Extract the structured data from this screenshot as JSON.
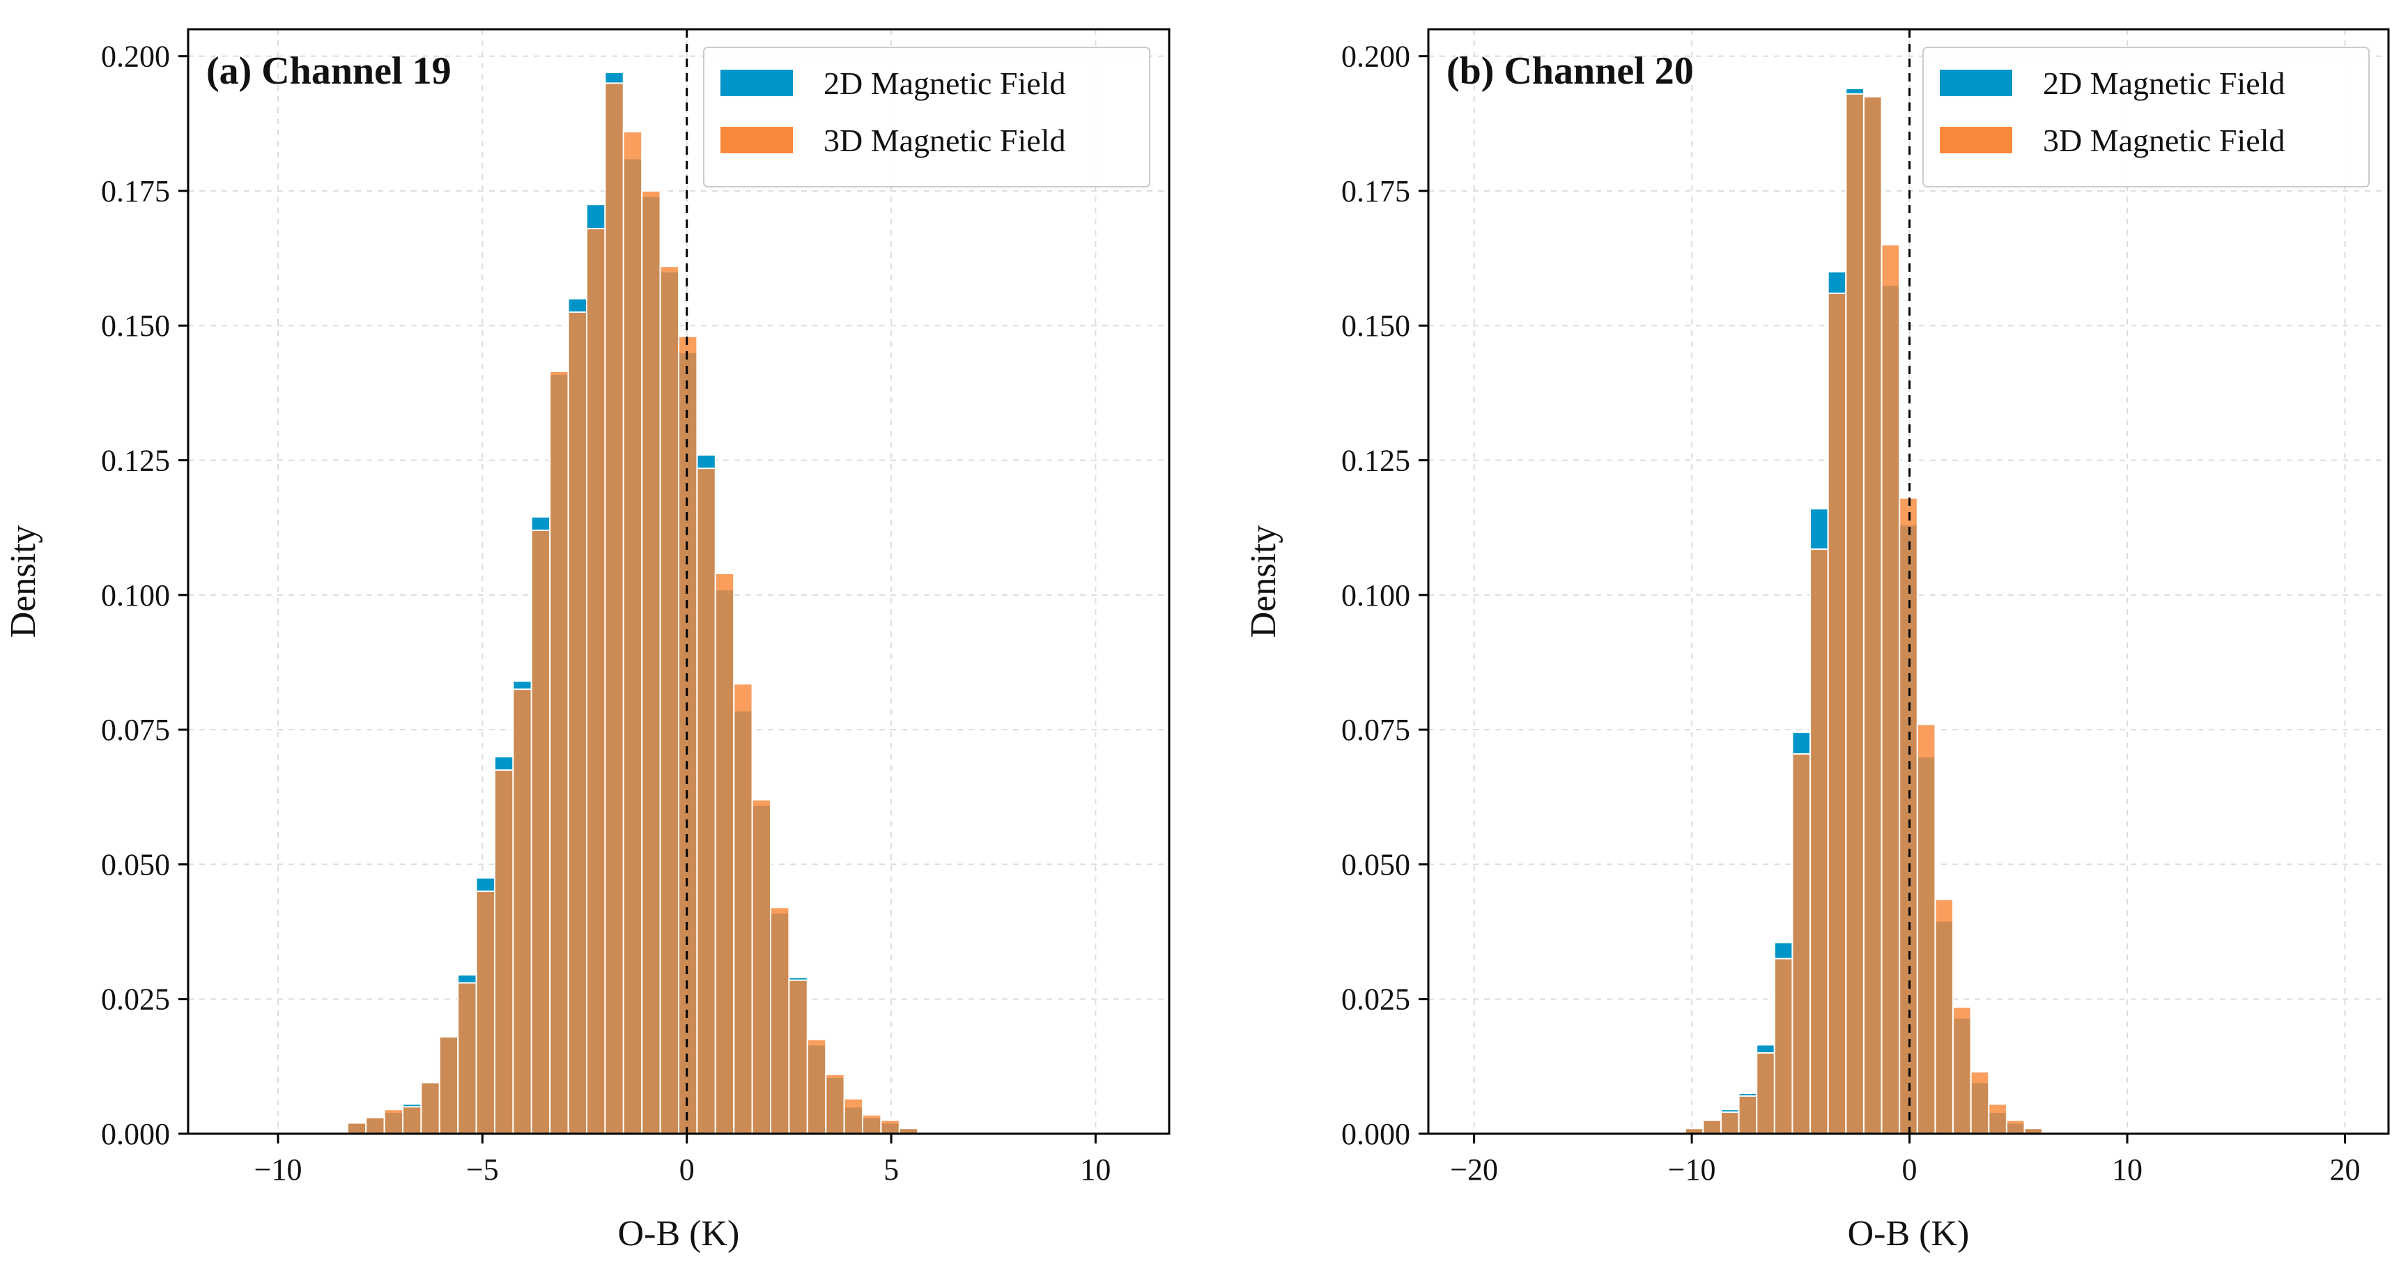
{
  "chart_data": [
    {
      "type": "bar",
      "title": "(a) Channel 19",
      "xlabel": "O-B (K)",
      "ylabel": "Density",
      "xlim": [
        -12.2,
        11.8
      ],
      "ylim": [
        0,
        0.205
      ],
      "xticks": [
        -10,
        -5,
        0,
        5,
        10
      ],
      "xtick_labels": [
        "−10",
        "−5",
        "0",
        "5",
        "10"
      ],
      "yticks": [
        0,
        0.025,
        0.05,
        0.075,
        0.1,
        0.125,
        0.15,
        0.175,
        0.2
      ],
      "ytick_labels": [
        "0.000",
        "0.025",
        "0.050",
        "0.075",
        "0.100",
        "0.125",
        "0.150",
        "0.175",
        "0.200"
      ],
      "grid": true,
      "legend_position": "top-right",
      "reference_line_x": 0,
      "bin_width": 0.45,
      "bin_starts": [
        -8.3,
        -7.85,
        -7.4,
        -6.95,
        -6.5,
        -6.05,
        -5.6,
        -5.15,
        -4.7,
        -4.25,
        -3.8,
        -3.35,
        -2.9,
        -2.45,
        -2.0,
        -1.55,
        -1.1,
        -0.65,
        -0.2,
        0.25,
        0.7,
        1.15,
        1.6,
        2.05,
        2.5,
        2.95,
        3.4,
        3.85,
        4.3,
        4.75,
        5.2
      ],
      "series": [
        {
          "name": "2D Magnetic Field",
          "color": "#0095c8",
          "values": [
            0.002,
            0.003,
            0.004,
            0.0055,
            0.0095,
            0.018,
            0.0295,
            0.0475,
            0.07,
            0.084,
            0.1145,
            0.141,
            0.155,
            0.1725,
            0.197,
            0.181,
            0.174,
            0.16,
            0.145,
            0.126,
            0.101,
            0.0785,
            0.061,
            0.041,
            0.029,
            0.0165,
            0.0105,
            0.005,
            0.003,
            0.002,
            0.001
          ]
        },
        {
          "name": "3D Magnetic Field",
          "color": "#f9893a",
          "values": [
            0.002,
            0.003,
            0.0045,
            0.005,
            0.0095,
            0.018,
            0.028,
            0.045,
            0.0675,
            0.0825,
            0.112,
            0.1415,
            0.1525,
            0.168,
            0.195,
            0.186,
            0.175,
            0.161,
            0.148,
            0.1235,
            0.104,
            0.0835,
            0.062,
            0.042,
            0.0285,
            0.0175,
            0.011,
            0.0065,
            0.0035,
            0.0025,
            0.001
          ]
        }
      ]
    },
    {
      "type": "bar",
      "title": "(b) Channel 20",
      "xlabel": "O-B (K)",
      "ylabel": "Density",
      "xlim": [
        -22.1,
        22.0
      ],
      "ylim": [
        0,
        0.205
      ],
      "xticks": [
        -20,
        -10,
        0,
        10,
        20
      ],
      "xtick_labels": [
        "−20",
        "−10",
        "0",
        "10",
        "20"
      ],
      "yticks": [
        0,
        0.025,
        0.05,
        0.075,
        0.1,
        0.125,
        0.15,
        0.175,
        0.2
      ],
      "ytick_labels": [
        "0.000",
        "0.025",
        "0.050",
        "0.075",
        "0.100",
        "0.125",
        "0.150",
        "0.175",
        "0.200"
      ],
      "grid": true,
      "legend_position": "top-right",
      "reference_line_x": 0,
      "bin_width": 0.82,
      "bin_starts": [
        -10.3,
        -9.48,
        -8.66,
        -7.84,
        -7.02,
        -6.2,
        -5.38,
        -4.56,
        -3.74,
        -2.92,
        -2.1,
        -1.28,
        -0.46,
        0.36,
        1.18,
        2.0,
        2.82,
        3.64,
        4.46,
        5.28
      ],
      "series": [
        {
          "name": "2D Magnetic Field",
          "color": "#0095c8",
          "values": [
            0.001,
            0.0025,
            0.0045,
            0.0075,
            0.0165,
            0.0355,
            0.0745,
            0.116,
            0.16,
            0.194,
            0.1925,
            0.1575,
            0.113,
            0.07,
            0.0395,
            0.0215,
            0.0095,
            0.004,
            0.002,
            0.001
          ]
        },
        {
          "name": "3D Magnetic Field",
          "color": "#f9893a",
          "values": [
            0.001,
            0.0025,
            0.004,
            0.007,
            0.015,
            0.0325,
            0.0705,
            0.1085,
            0.156,
            0.193,
            0.1925,
            0.165,
            0.118,
            0.076,
            0.0435,
            0.0235,
            0.0115,
            0.0055,
            0.0025,
            0.001
          ]
        }
      ]
    }
  ]
}
